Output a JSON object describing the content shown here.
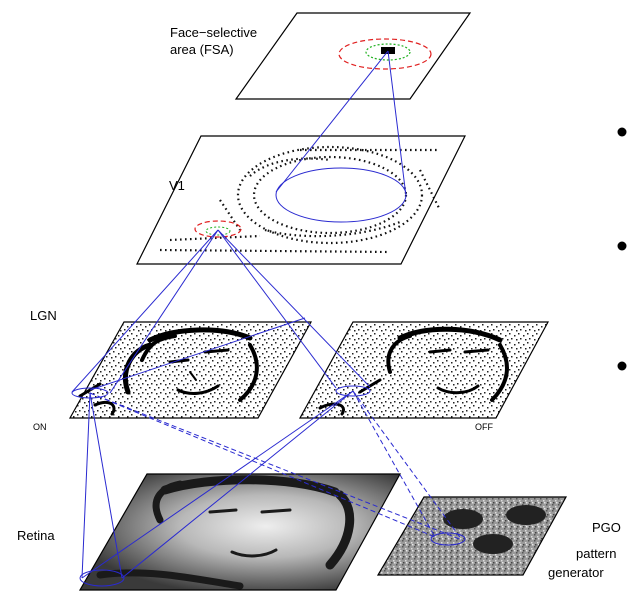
{
  "labels": {
    "fsa_line1": "Face−selective",
    "fsa_line2": "area (FSA)",
    "v1": "V1",
    "lgn": "LGN",
    "on": "ON",
    "off": "OFF",
    "retina": "Retina",
    "pgo_line1": "PGO",
    "pgo_line2": "pattern",
    "pgo_line3": "generator"
  },
  "colors": {
    "connection": "#2a2ad0",
    "activity_outer": "#e02020",
    "activity_inner": "#20b020",
    "sheet_border": "#000000"
  },
  "sheets": [
    "Face-selective area (FSA)",
    "V1",
    "LGN ON",
    "LGN OFF",
    "Retina",
    "PGO pattern generator"
  ]
}
